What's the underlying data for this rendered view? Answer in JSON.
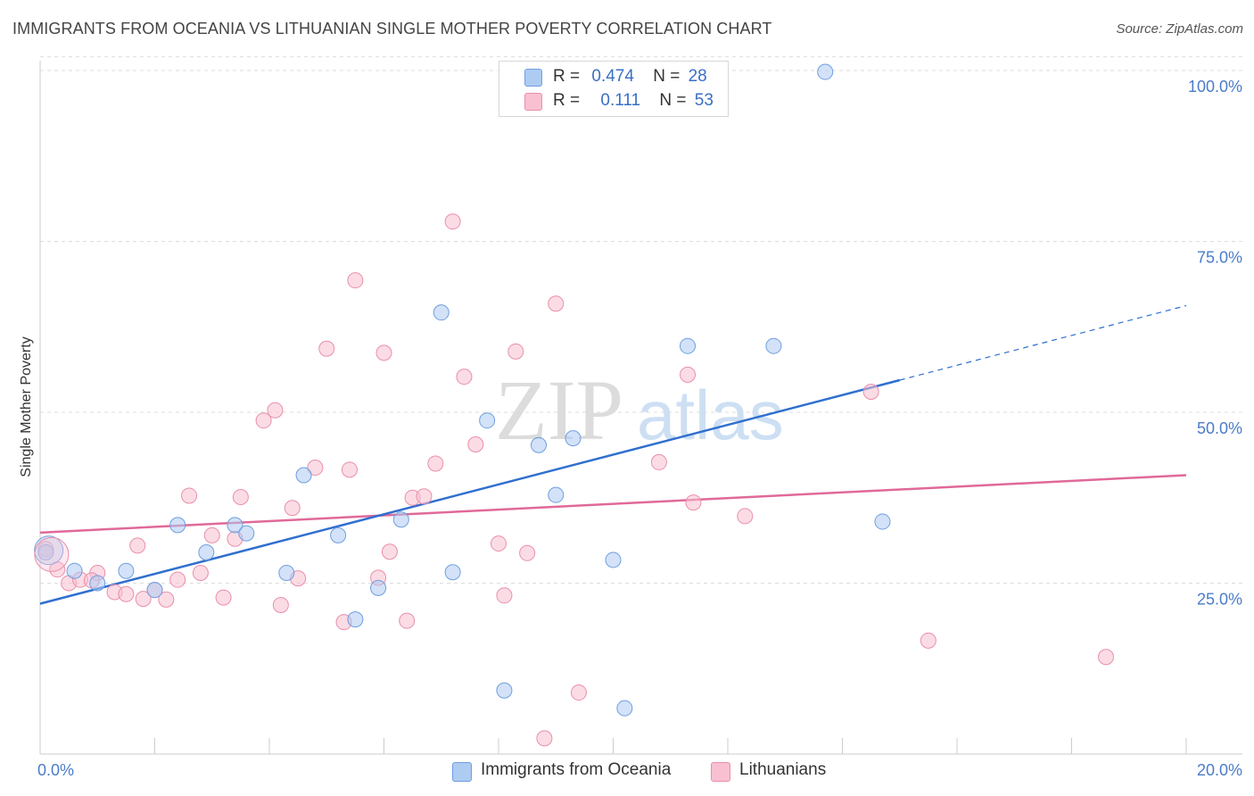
{
  "title": "IMMIGRANTS FROM OCEANIA VS LITHUANIAN SINGLE MOTHER POVERTY CORRELATION CHART",
  "source": "Source: ZipAtlas.com",
  "watermark": {
    "zip": "ZIP",
    "atlas": "atlas"
  },
  "legend": {
    "r_label": "R =",
    "n_label": "N =",
    "series": [
      {
        "name": "Immigrants from Oceania",
        "r": "0.474",
        "n": "28"
      },
      {
        "name": "Lithuanians",
        "r": "0.111",
        "n": "53"
      }
    ]
  },
  "colors": {
    "blue_fill": "#aecbf2",
    "blue_stroke": "#6e9fe0",
    "blue_line": "#2f6fcf",
    "pink_fill": "#f8c0d0",
    "pink_stroke": "#ea8fab",
    "pink_line": "#e0699a",
    "tick_text": "#4a7cc8",
    "grid": "#dddddd"
  },
  "chart_data": {
    "type": "scatter",
    "title": "IMMIGRANTS FROM OCEANIA VS LITHUANIAN SINGLE MOTHER POVERTY CORRELATION CHART",
    "xlabel": "",
    "ylabel": "Single Mother Poverty",
    "xlim": [
      0,
      20
    ],
    "ylim": [
      0,
      102
    ],
    "x_tick_labels": [
      "0.0%",
      "20.0%"
    ],
    "y_ticks": [
      25,
      50,
      75,
      100
    ],
    "y_tick_labels": [
      "25.0%",
      "50.0%",
      "75.0%",
      "100.0%"
    ],
    "grid": true,
    "legend_position": "top-center",
    "series": [
      {
        "name": "Immigrants from Oceania",
        "color": "#aecbf2",
        "points": [
          [
            0.1,
            29.5
          ],
          [
            0.6,
            26.8
          ],
          [
            1.5,
            26.8
          ],
          [
            2.0,
            24.0
          ],
          [
            2.4,
            33.5
          ],
          [
            2.9,
            29.5
          ],
          [
            3.4,
            33.5
          ],
          [
            3.6,
            32.3
          ],
          [
            4.3,
            26.5
          ],
          [
            4.6,
            40.8
          ],
          [
            5.2,
            32.0
          ],
          [
            5.5,
            19.7
          ],
          [
            5.9,
            24.3
          ],
          [
            6.3,
            34.3
          ],
          [
            7.0,
            64.6
          ],
          [
            7.2,
            26.6
          ],
          [
            7.8,
            48.8
          ],
          [
            8.1,
            9.3
          ],
          [
            8.7,
            45.2
          ],
          [
            9.0,
            37.9
          ],
          [
            9.3,
            46.2
          ],
          [
            10.0,
            28.4
          ],
          [
            10.2,
            6.7
          ],
          [
            11.3,
            59.7
          ],
          [
            12.8,
            59.7
          ],
          [
            13.7,
            99.8
          ],
          [
            14.7,
            34.0
          ],
          [
            1.0,
            25.0
          ]
        ]
      },
      {
        "name": "Lithuanians",
        "color": "#f8c0d0",
        "points": [
          [
            0.1,
            30.0
          ],
          [
            0.3,
            27.0
          ],
          [
            0.5,
            25.0
          ],
          [
            0.7,
            25.5
          ],
          [
            1.0,
            26.5
          ],
          [
            1.3,
            23.7
          ],
          [
            1.5,
            23.4
          ],
          [
            1.7,
            30.5
          ],
          [
            1.8,
            22.7
          ],
          [
            2.0,
            24.0
          ],
          [
            2.2,
            22.6
          ],
          [
            2.4,
            25.5
          ],
          [
            2.6,
            37.8
          ],
          [
            2.8,
            26.5
          ],
          [
            3.0,
            32.0
          ],
          [
            3.2,
            22.9
          ],
          [
            3.4,
            31.5
          ],
          [
            3.5,
            37.6
          ],
          [
            3.9,
            48.8
          ],
          [
            4.1,
            50.3
          ],
          [
            4.2,
            21.8
          ],
          [
            4.4,
            36.0
          ],
          [
            4.5,
            25.7
          ],
          [
            4.8,
            41.9
          ],
          [
            5.0,
            59.3
          ],
          [
            5.3,
            19.3
          ],
          [
            5.4,
            41.6
          ],
          [
            5.5,
            69.3
          ],
          [
            5.9,
            25.8
          ],
          [
            6.0,
            58.7
          ],
          [
            6.1,
            29.6
          ],
          [
            6.4,
            19.5
          ],
          [
            6.5,
            37.5
          ],
          [
            6.7,
            37.7
          ],
          [
            6.9,
            42.5
          ],
          [
            7.2,
            77.9
          ],
          [
            7.4,
            55.2
          ],
          [
            7.6,
            45.3
          ],
          [
            8.0,
            30.8
          ],
          [
            8.1,
            23.2
          ],
          [
            8.3,
            58.9
          ],
          [
            8.5,
            29.4
          ],
          [
            8.8,
            2.3
          ],
          [
            9.0,
            65.9
          ],
          [
            9.4,
            9.0
          ],
          [
            10.8,
            42.7
          ],
          [
            11.3,
            55.5
          ],
          [
            11.4,
            36.8
          ],
          [
            12.3,
            34.8
          ],
          [
            14.5,
            53.0
          ],
          [
            15.5,
            16.6
          ],
          [
            18.6,
            14.2
          ],
          [
            0.9,
            25.4
          ]
        ]
      }
    ],
    "trend_lines": [
      {
        "series": "Immigrants from Oceania",
        "x": [
          0,
          15
        ],
        "y": [
          22.0,
          54.7
        ],
        "dashed_extension_to_x": 20,
        "dashed_extension_y": 65.6
      },
      {
        "series": "Lithuanians",
        "x": [
          0,
          20
        ],
        "y": [
          32.4,
          40.8
        ]
      }
    ]
  }
}
